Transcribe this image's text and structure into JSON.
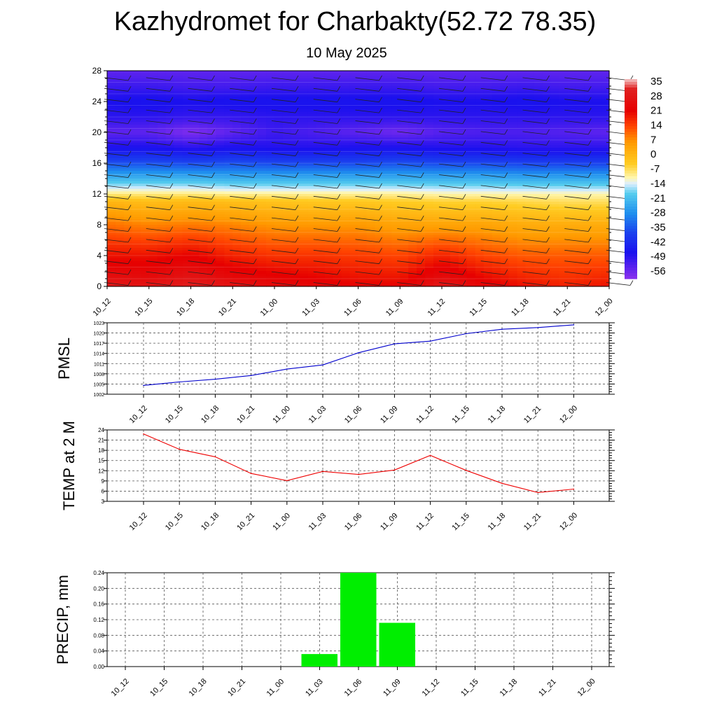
{
  "title": "Kazhydromet for Charbakty(52.72 78.35)",
  "subtitle": "10 May 2025",
  "time_labels": [
    "10_12",
    "10_15",
    "10_18",
    "10_21",
    "11_00",
    "11_03",
    "11_06",
    "11_09",
    "11_12",
    "11_15",
    "11_18",
    "11_21",
    "12_00"
  ],
  "colors": {
    "pmsl_line": "#0000cc",
    "temp_line": "#ee0000",
    "precip_bar": "#00ee00",
    "grid": "#555555"
  },
  "chart_data": [
    {
      "type": "heatmap",
      "title": "",
      "xlabel": "",
      "ylabel": "",
      "x": [
        "10_12",
        "10_15",
        "10_18",
        "10_21",
        "11_00",
        "11_03",
        "11_06",
        "11_09",
        "11_12",
        "11_15",
        "11_18",
        "11_21",
        "12_00"
      ],
      "y_ticks": [
        0,
        4,
        8,
        12,
        16,
        20,
        24,
        28
      ],
      "ylim": [
        0,
        28
      ],
      "colorbar": {
        "labels": [
          35,
          28,
          21,
          14,
          7,
          0,
          -7,
          -14,
          -21,
          -28,
          -35,
          -42,
          -49,
          -56
        ],
        "range": [
          -63,
          38
        ],
        "stops": [
          {
            "value": 38,
            "color": "#f4c8c8"
          },
          {
            "value": 33,
            "color": "#e02020"
          },
          {
            "value": 22,
            "color": "#e60000"
          },
          {
            "value": 14,
            "color": "#ff4400"
          },
          {
            "value": 6,
            "color": "#ff9a00"
          },
          {
            "value": -5,
            "color": "#ffcc22"
          },
          {
            "value": -12,
            "color": "#fff7b0"
          },
          {
            "value": -15,
            "color": "#ddeeff"
          },
          {
            "value": -20,
            "color": "#55ccee"
          },
          {
            "value": -30,
            "color": "#1f8fee"
          },
          {
            "value": -40,
            "color": "#1a40ee"
          },
          {
            "value": -50,
            "color": "#1a10ee"
          },
          {
            "value": -63,
            "color": "#8a30ee"
          }
        ]
      },
      "field": [
        {
          "height": 0,
          "values": [
            30,
            28,
            32,
            28,
            26,
            24,
            22,
            22,
            30,
            24,
            20,
            18,
            20
          ]
        },
        {
          "height": 4,
          "values": [
            20,
            20,
            22,
            18,
            16,
            16,
            15,
            14,
            18,
            14,
            12,
            12,
            12
          ]
        },
        {
          "height": 8,
          "values": [
            10,
            8,
            9,
            8,
            6,
            6,
            6,
            4,
            4,
            4,
            2,
            2,
            2
          ]
        },
        {
          "height": 11,
          "values": [
            0,
            -2,
            -1,
            -2,
            -3,
            -4,
            -4,
            -5,
            -6,
            -6,
            -7,
            -8,
            -8
          ]
        },
        {
          "height": 12,
          "values": [
            -10,
            -10,
            -10,
            -11,
            -11,
            -11,
            -11,
            -11,
            -12,
            -12,
            -12,
            -12,
            -12
          ]
        },
        {
          "height": 14,
          "values": [
            -24,
            -24,
            -24,
            -25,
            -25,
            -25,
            -25,
            -25,
            -25,
            -25,
            -26,
            -26,
            -26
          ]
        },
        {
          "height": 16,
          "values": [
            -38,
            -38,
            -39,
            -38,
            -39,
            -39,
            -39,
            -38,
            -39,
            -39,
            -40,
            -40,
            -40
          ]
        },
        {
          "height": 18,
          "values": [
            -50,
            -50,
            -52,
            -50,
            -51,
            -51,
            -50,
            -50,
            -51,
            -51,
            -52,
            -52,
            -52
          ]
        },
        {
          "height": 20,
          "values": [
            -58,
            -58,
            -62,
            -58,
            -54,
            -56,
            -58,
            -60,
            -57,
            -56,
            -56,
            -57,
            -58
          ]
        },
        {
          "height": 22,
          "values": [
            -52,
            -52,
            -53,
            -53,
            -52,
            -52,
            -52,
            -52,
            -52,
            -52,
            -52,
            -52,
            -52
          ]
        },
        {
          "height": 24,
          "values": [
            -50,
            -49,
            -50,
            -49,
            -49,
            -49,
            -49,
            -49,
            -50,
            -50,
            -49,
            -50,
            -50
          ]
        },
        {
          "height": 26,
          "values": [
            -54,
            -54,
            -55,
            -55,
            -54,
            -54,
            -54,
            -54,
            -55,
            -55,
            -54,
            -55,
            -55
          ]
        },
        {
          "height": 28,
          "values": [
            -58,
            -58,
            -58,
            -58,
            -58,
            -58,
            -58,
            -58,
            -58,
            -58,
            -58,
            -58,
            -58
          ]
        }
      ]
    },
    {
      "type": "line",
      "ylabel": "PMSL",
      "x": [
        "10_12",
        "10_15",
        "10_18",
        "10_21",
        "11_00",
        "11_03",
        "11_06",
        "11_09",
        "11_12",
        "11_15",
        "11_18",
        "11_21",
        "12_00"
      ],
      "ylim": [
        1002,
        1023
      ],
      "y_ticks": [
        1002,
        1005,
        1008,
        1011,
        1014,
        1017,
        1020,
        1023
      ],
      "series": [
        {
          "values": [
            1004.6,
            1005.6,
            1006.4,
            1007.5,
            1009.4,
            1010.6,
            1014.2,
            1016.8,
            1017.6,
            1019.8,
            1021.1,
            1021.6,
            1022.4
          ]
        }
      ]
    },
    {
      "type": "line",
      "ylabel": "TEMP at 2 M",
      "x": [
        "10_12",
        "10_15",
        "10_18",
        "10_21",
        "11_00",
        "11_03",
        "11_06",
        "11_09",
        "11_12",
        "11_15",
        "11_18",
        "11_21",
        "12_00"
      ],
      "ylim": [
        3,
        24
      ],
      "y_ticks": [
        3,
        6,
        9,
        12,
        15,
        18,
        21,
        24
      ],
      "series": [
        {
          "values": [
            22.8,
            18.3,
            16.1,
            11.2,
            9.1,
            11.8,
            10.9,
            12.2,
            16.5,
            12.1,
            8.3,
            5.6,
            6.6
          ]
        }
      ]
    },
    {
      "type": "bar",
      "ylabel": "PRECIP, mm",
      "categories": [
        "10_12",
        "10_15",
        "10_18",
        "10_21",
        "11_00",
        "11_03",
        "11_06",
        "11_09",
        "11_12",
        "11_15",
        "11_18",
        "11_21",
        "12_00"
      ],
      "ylim": [
        0,
        0.24
      ],
      "y_ticks": [
        "0.00",
        "0.04",
        "0.08",
        "0.12",
        "0.16",
        "0.20",
        "0.24"
      ],
      "values": [
        0,
        0,
        0,
        0,
        0,
        0.032,
        0.242,
        0.112,
        0,
        0,
        0,
        0,
        0
      ]
    }
  ]
}
